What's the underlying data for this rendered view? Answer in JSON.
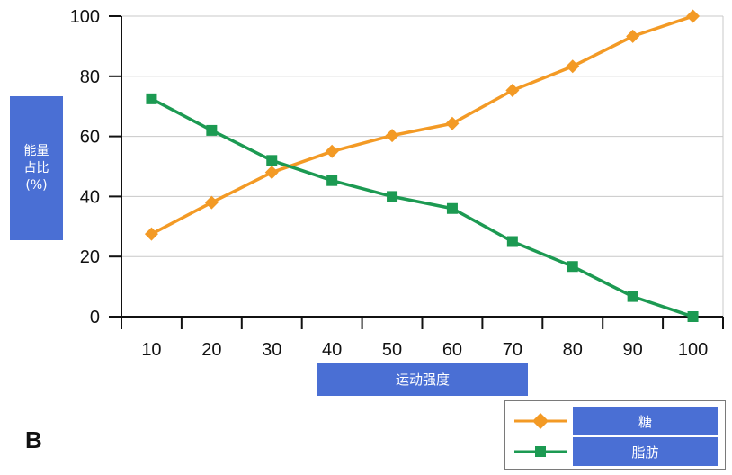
{
  "chart_data": {
    "type": "line",
    "x": [
      10,
      20,
      30,
      40,
      50,
      60,
      70,
      80,
      90,
      100
    ],
    "series": [
      {
        "name": "糖",
        "values": [
          27.5,
          38,
          48,
          55,
          60.3,
          64.3,
          75.3,
          83.3,
          93.3,
          100
        ],
        "color": "#f39a25",
        "marker": "diamond"
      },
      {
        "name": "脂肪",
        "values": [
          72.5,
          62,
          52,
          45.3,
          40,
          36,
          25,
          16.7,
          6.7,
          0
        ],
        "color": "#1c9a52",
        "marker": "square"
      }
    ],
    "xlabel": "运动强度",
    "ylabel_lines": [
      "能量",
      "占比",
      "(%)"
    ],
    "ylim": [
      0,
      100
    ],
    "yticks": [
      0,
      20,
      40,
      60,
      80,
      100
    ],
    "xticks": [
      10,
      20,
      30,
      40,
      50,
      60,
      70,
      80,
      90,
      100
    ],
    "grid": "horizontal",
    "legend_position": "bottom-right",
    "panel_label": "B"
  }
}
